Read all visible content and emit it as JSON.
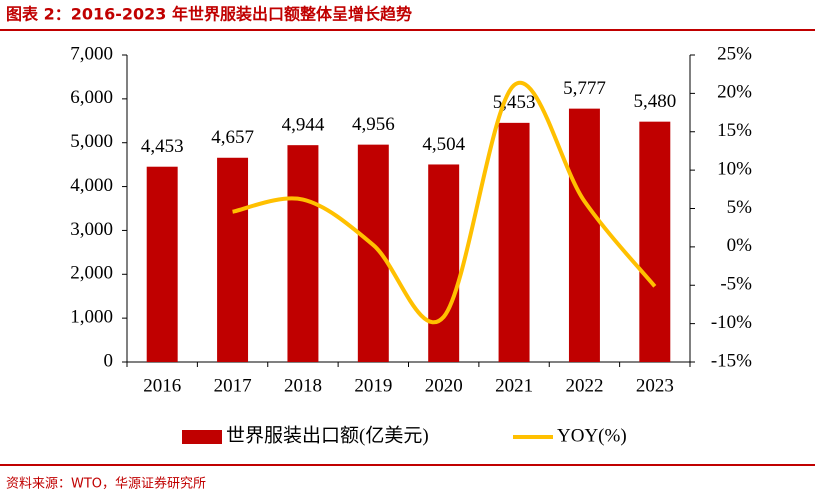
{
  "chart_data": {
    "type": "bar-line",
    "title": "图表 2：2016-2023 年世界服装出口额整体呈增长趋势",
    "source": "资料来源：WTO，华源证券研究所",
    "categories": [
      "2016",
      "2017",
      "2018",
      "2019",
      "2020",
      "2021",
      "2022",
      "2023"
    ],
    "series": [
      {
        "name": "世界服装出口额(亿美元)",
        "color": "#c00000",
        "type": "bar",
        "values": [
          4453,
          4657,
          4944,
          4956,
          4504,
          5453,
          5777,
          5480
        ],
        "value_labels": [
          "4,453",
          "4,657",
          "4,944",
          "4,956",
          "4,504",
          "5,453",
          "5,777",
          "5,480"
        ]
      },
      {
        "name": "YOY(%)",
        "color": "#ffc000",
        "type": "line",
        "axis": "y2",
        "values": [
          null,
          4.58,
          6.16,
          0.24,
          -9.12,
          21.07,
          5.94,
          -5.14
        ]
      }
    ],
    "ylim": [
      0,
      7000
    ],
    "yticks": [
      0,
      {
        "value": 1000,
        "label": "1,000"
      },
      {
        "value": 2000,
        "label": "2,000"
      },
      {
        "value": 3000,
        "label": "3,000"
      },
      {
        "value": 4000,
        "label": "4,000"
      },
      {
        "value": 5000,
        "label": "5,000"
      },
      {
        "value": 6000,
        "label": "6,000"
      },
      {
        "value": 7000,
        "label": "7,000"
      }
    ],
    "y2lim": [
      -15,
      25
    ],
    "y2ticks": [
      {
        "value": -15,
        "label": "-15%"
      },
      {
        "value": -10,
        "label": "-10%"
      },
      {
        "value": -5,
        "label": "-5%"
      },
      {
        "value": 0,
        "label": "0%"
      },
      {
        "value": 5,
        "label": "5%"
      },
      {
        "value": 10,
        "label": "10%"
      },
      {
        "value": 15,
        "label": "15%"
      },
      {
        "value": 20,
        "label": "20%"
      },
      {
        "value": 25,
        "label": "25%"
      }
    ],
    "legend": "bottom"
  }
}
